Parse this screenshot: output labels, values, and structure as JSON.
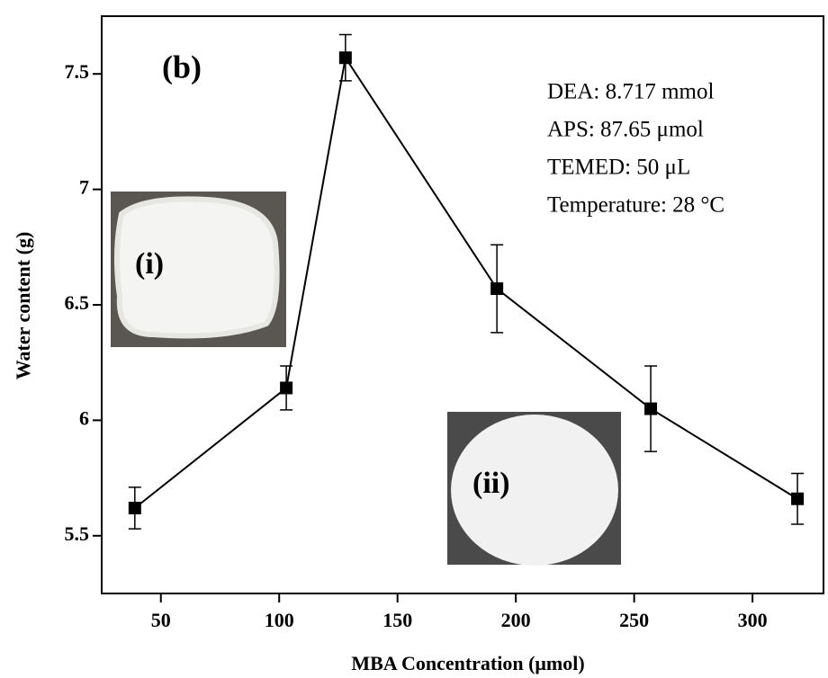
{
  "chart_data": {
    "type": "line",
    "xlabel": "MBA Concentration (μmol)",
    "ylabel": "Water content (g)",
    "x": [
      39,
      103,
      128,
      192,
      257,
      319
    ],
    "values": [
      5.62,
      6.14,
      7.57,
      6.57,
      6.05,
      5.66
    ],
    "errors": [
      0.09,
      0.095,
      0.1,
      0.19,
      0.185,
      0.11
    ],
    "color": "#000000",
    "xlim": [
      25,
      330
    ],
    "ylim": [
      5.25,
      7.75
    ],
    "xticks": [
      50,
      100,
      150,
      200,
      250,
      300
    ],
    "yticks": [
      5.5,
      6.0,
      6.5,
      7.0,
      7.5
    ],
    "panel_label": "(b)",
    "annotations": [
      "DEA: 8.717 mmol",
      "APS: 87.65 μmol",
      "TEMED: 50 μL",
      "Temperature: 28 °C"
    ],
    "insets": [
      "(i)",
      "(ii)"
    ]
  }
}
